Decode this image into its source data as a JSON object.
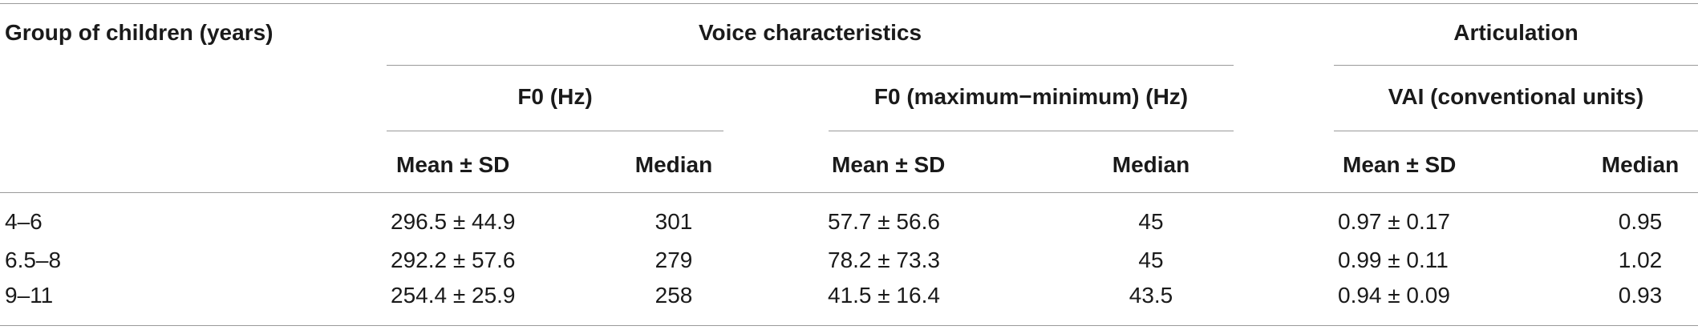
{
  "table": {
    "header": {
      "row_label": "Group of children (years)",
      "voice_group": "Voice characteristics",
      "articulation_group": "Articulation",
      "f0": "F0 (Hz)",
      "f0_range": "F0 (maximum−minimum) (Hz)",
      "vai": "VAI (conventional units)",
      "mean_sd": "Mean ± SD",
      "median": "Median"
    },
    "rows": [
      {
        "group": "4–6",
        "f0_mean_sd": "296.5 ± 44.9",
        "f0_median": "301",
        "range_mean_sd": "57.7 ± 56.6",
        "range_median": "45",
        "vai_mean_sd": "0.97 ± 0.17",
        "vai_median": "0.95"
      },
      {
        "group": "6.5–8",
        "f0_mean_sd": "292.2 ± 57.6",
        "f0_median": "279",
        "range_mean_sd": "78.2 ± 73.3",
        "range_median": "45",
        "vai_mean_sd": "0.99 ± 0.11",
        "vai_median": "1.02"
      },
      {
        "group": "9–11",
        "f0_mean_sd": "254.4 ± 25.9",
        "f0_median": "258",
        "range_mean_sd": "41.5 ± 16.4",
        "range_median": "43.5",
        "vai_mean_sd": "0.94 ± 0.09",
        "vai_median": "0.93"
      }
    ]
  }
}
